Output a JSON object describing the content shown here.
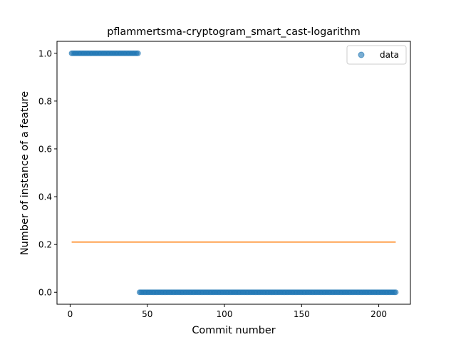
{
  "chart_data": {
    "type": "scatter",
    "title": "pflammertsma-cryptogram_smart_cast-logarithm",
    "xlabel": "Commit number",
    "ylabel": "Number of instance of a feature",
    "xlim": [
      -8.5,
      220.5
    ],
    "ylim": [
      -0.05,
      1.05
    ],
    "xticks": [
      0,
      50,
      100,
      150,
      200
    ],
    "yticks": [
      0.0,
      0.2,
      0.4,
      0.6,
      0.8,
      1.0
    ],
    "xtick_labels": [
      "0",
      "50",
      "100",
      "150",
      "200"
    ],
    "ytick_labels": [
      "0.0",
      "0.2",
      "0.4",
      "0.6",
      "0.8",
      "1.0"
    ],
    "grid": false,
    "legend": {
      "placement": "top-right",
      "entries": [
        "data"
      ]
    },
    "series": [
      {
        "name": "data",
        "kind": "scatter",
        "color": "#1f77b4",
        "segments": [
          {
            "x_start": 1,
            "x_end": 44,
            "y": 1.0
          },
          {
            "x_start": 45,
            "x_end": 211,
            "y": 0.0
          }
        ]
      },
      {
        "kind": "line",
        "color": "#ff7f0e",
        "x": [
          1,
          211
        ],
        "y": [
          0.21,
          0.21
        ]
      }
    ]
  }
}
